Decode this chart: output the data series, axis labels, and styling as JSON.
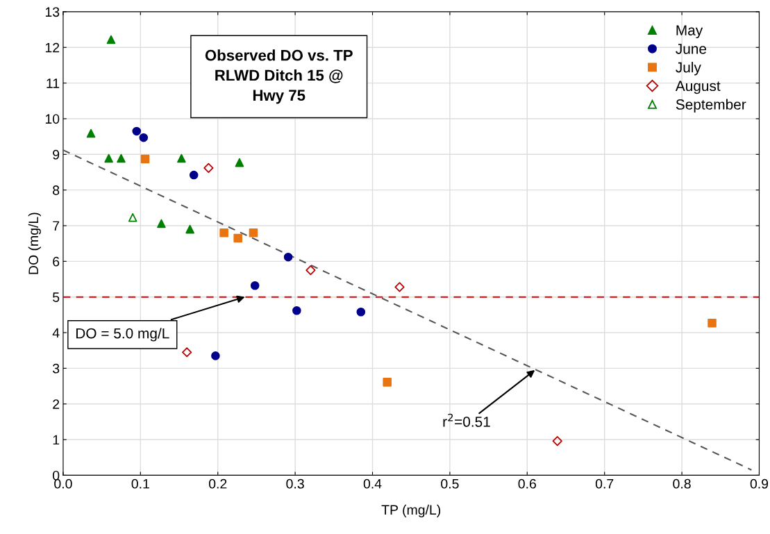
{
  "chart_data": {
    "type": "scatter",
    "title": "Observed DO vs. TP\nRLWD Ditch 15 @\nHwy 75",
    "xlabel": "TP (mg/L)",
    "ylabel": "DO (mg/L)",
    "xlim": [
      0,
      0.9
    ],
    "ylim": [
      0,
      13
    ],
    "xticks": [
      {
        "value": 0,
        "label": "0.0"
      },
      0.1,
      0.2,
      0.3,
      0.4,
      0.5,
      0.6,
      0.7,
      0.8,
      0.9
    ],
    "yticks": [
      0,
      1,
      2,
      3,
      4,
      5,
      6,
      7,
      8,
      9,
      10,
      11,
      12,
      13
    ],
    "grid": true,
    "legend": "top right",
    "series": [
      {
        "name": "May",
        "color": "#008000",
        "marker": "triangle",
        "x": [
          0.036,
          0.062,
          0.059,
          0.075,
          0.153,
          0.228,
          0.127,
          0.164
        ],
        "values": [
          9.59,
          12.22,
          8.89,
          8.89,
          8.89,
          8.77,
          7.06,
          6.9
        ]
      },
      {
        "name": "June",
        "color": "#00008b",
        "marker": "circle",
        "x": [
          0.095,
          0.104,
          0.169,
          0.291,
          0.248,
          0.302,
          0.385,
          0.197
        ],
        "values": [
          9.65,
          9.47,
          8.42,
          6.12,
          5.32,
          4.62,
          4.58,
          3.35
        ]
      },
      {
        "name": "July",
        "color": "#e87511",
        "marker": "square",
        "x": [
          0.106,
          0.208,
          0.226,
          0.246,
          0.419,
          0.839
        ],
        "values": [
          8.87,
          6.8,
          6.65,
          6.8,
          2.61,
          4.27
        ]
      },
      {
        "name": "August",
        "color": "#c00000",
        "marker": "diamond open",
        "x": [
          0.188,
          0.32,
          0.435,
          0.16,
          0.639
        ],
        "values": [
          8.62,
          5.75,
          5.28,
          3.45,
          0.96
        ]
      },
      {
        "name": "September",
        "color": "#008000",
        "marker": "triangle open",
        "x": [
          0.09
        ],
        "values": [
          7.23
        ]
      },
      {
        "type": "line",
        "color": "#555555",
        "line_style": "dashed",
        "x": [
          0,
          0.89
        ],
        "values": [
          9.12,
          0.15
        ]
      }
    ],
    "ref_lines": [
      {
        "axis": "y",
        "value": 5,
        "color": "#e00000",
        "line_style": "dashed"
      }
    ],
    "annotations": [
      {
        "text": "DO = 5.0 mg/L",
        "x": 0.235,
        "y": 5.0
      },
      {
        "text": "r$^{2}$=0.51",
        "x": 0.61,
        "y": 2.95
      }
    ]
  }
}
